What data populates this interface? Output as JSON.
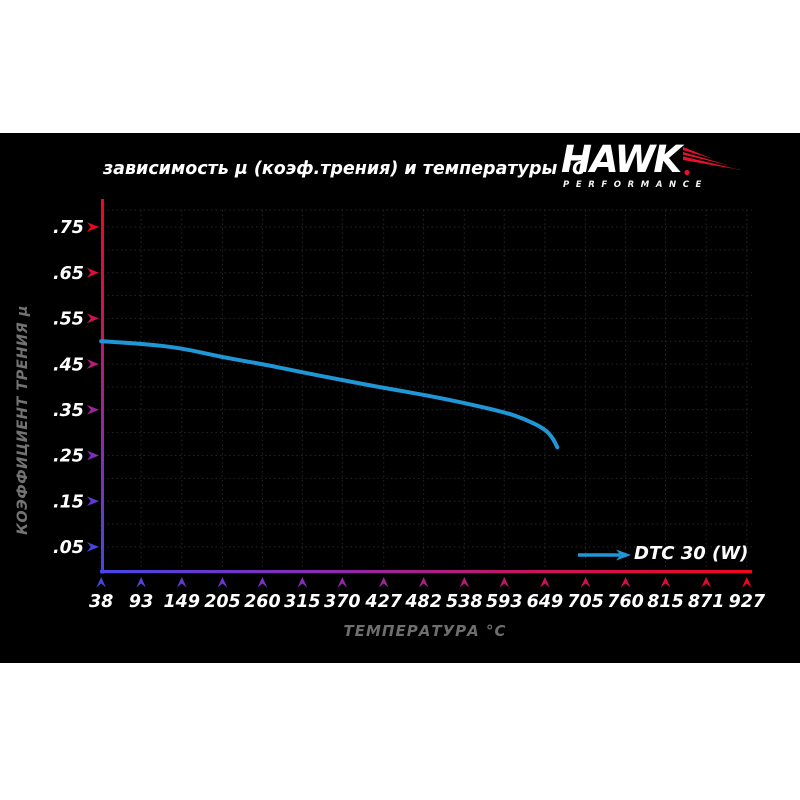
{
  "panel": {
    "bg": "#000000",
    "page_bg": "#ffffff"
  },
  "logo": {
    "brand": "HAWK",
    "subtext": "PERFORMANCE",
    "accent": "#e8112d"
  },
  "chart_data": {
    "type": "line",
    "title": "зависимость μ (коэф.трения) и температуры °C",
    "xlabel": "ТЕМПЕРАТУРА °C",
    "ylabel": "КОЭФФИЦИЕНТ ТРЕНИЯ μ",
    "x_ticks": [
      38,
      93,
      149,
      205,
      260,
      315,
      370,
      427,
      482,
      538,
      593,
      649,
      705,
      760,
      815,
      871,
      927
    ],
    "x_tick_unit": "°C",
    "y_ticks": [
      0.75,
      0.65,
      0.55,
      0.45,
      0.35,
      0.25,
      0.15,
      0.05
    ],
    "y_tick_labels": [
      ".75",
      ".65",
      ".55",
      ".45",
      ".35",
      ".25",
      ".15",
      ".05"
    ],
    "xlim": [
      38,
      927
    ],
    "ylim": [
      0,
      0.8
    ],
    "grid": {
      "style": "dotted",
      "color": "#262626",
      "x_every": "1 tick (55°C)",
      "y_every": 0.05
    },
    "legend": {
      "position": "bottom-right-inside"
    },
    "series": [
      {
        "name": "DTC 30 (W)",
        "color": "#1f97d6",
        "x": [
          38,
          93,
          149,
          205,
          260,
          315,
          370,
          427,
          482,
          538,
          593,
          621,
          649,
          660,
          666
        ],
        "y": [
          0.5,
          0.495,
          0.485,
          0.465,
          0.45,
          0.432,
          0.415,
          0.398,
          0.383,
          0.365,
          0.345,
          0.33,
          0.308,
          0.288,
          0.268
        ]
      }
    ],
    "colors": {
      "tick_label": "#ffffff",
      "axis_title": "#737373",
      "axis_gradient_red_end": "#f2061e",
      "axis_gradient_mid1": "#c8145e",
      "axis_gradient_mid2": "#8a2bb4",
      "axis_gradient_blue_end": "#4646e6"
    }
  }
}
